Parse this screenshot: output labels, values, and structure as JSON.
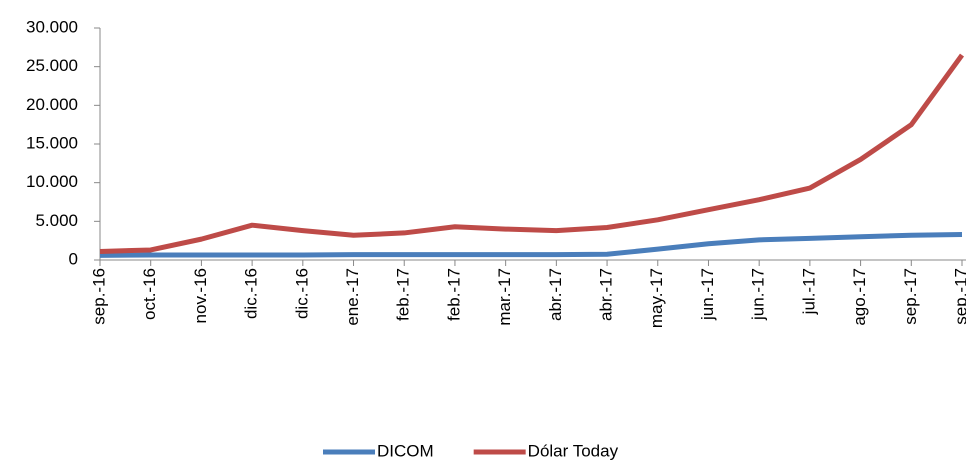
{
  "chart_data": {
    "type": "line",
    "categories": [
      "sep.-16",
      "oct.-16",
      "nov.-16",
      "dic.-16",
      "dic.-16",
      "ene.-17",
      "feb.-17",
      "feb.-17",
      "mar.-17",
      "abr.-17",
      "abr.-17",
      "may.-17",
      "jun.-17",
      "jun.-17",
      "jul.-17",
      "ago.-17",
      "sep.-17",
      "sep.-17"
    ],
    "series": [
      {
        "name": "DICOM",
        "color": "#4a7ebb",
        "values": [
          600,
          650,
          650,
          650,
          650,
          700,
          700,
          700,
          700,
          700,
          750,
          1400,
          2100,
          2600,
          2800,
          3000,
          3200,
          3300
        ]
      },
      {
        "name": "Dólar Today",
        "color": "#be4b48",
        "values": [
          1100,
          1300,
          2700,
          4500,
          3800,
          3200,
          3500,
          4300,
          4000,
          3800,
          4200,
          5200,
          6500,
          7800,
          9300,
          13000,
          17500,
          26500
        ]
      }
    ],
    "ylim": [
      0,
      30000
    ],
    "yticks": [
      0,
      {
        "value": 5000,
        "label": "5.000"
      },
      {
        "value": 10000,
        "label": "10.000"
      },
      {
        "value": 15000,
        "label": "15.000"
      },
      {
        "value": 20000,
        "label": "20.000"
      },
      {
        "value": 25000,
        "label": "25.000"
      },
      {
        "value": 30000,
        "label": "30.000"
      }
    ],
    "grid": false,
    "legend": "bottom"
  }
}
